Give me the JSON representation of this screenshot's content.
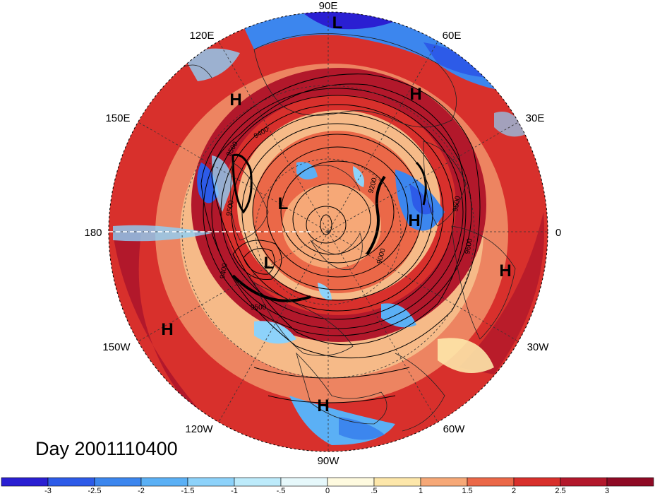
{
  "title": "Day 2001110400",
  "projection": "north polar stereographic",
  "longitude_labels": [
    {
      "text": "90E",
      "deg": 90
    },
    {
      "text": "60E",
      "deg": 60
    },
    {
      "text": "30E",
      "deg": 30
    },
    {
      "text": "0",
      "deg": 0
    },
    {
      "text": "30W",
      "deg": -30
    },
    {
      "text": "60W",
      "deg": -60
    },
    {
      "text": "90W",
      "deg": -90
    },
    {
      "text": "120W",
      "deg": -120
    },
    {
      "text": "150W",
      "deg": -150
    },
    {
      "text": "180",
      "deg": 180
    },
    {
      "text": "150E",
      "deg": 150
    },
    {
      "text": "120E",
      "deg": 120
    }
  ],
  "pressure_centers": [
    {
      "label": "L",
      "name": "low-90e"
    },
    {
      "label": "H",
      "name": "high-60e"
    },
    {
      "label": "H",
      "name": "high-130e"
    },
    {
      "label": "L",
      "name": "low-north-pacific"
    },
    {
      "label": "H",
      "name": "high-europe"
    },
    {
      "label": "H",
      "name": "high-north-africa"
    },
    {
      "label": "L",
      "name": "low-alaska"
    },
    {
      "label": "H",
      "name": "high-east-pacific"
    },
    {
      "label": "H",
      "name": "high-central-america"
    }
  ],
  "contour_labels": [
    "9400",
    "9500",
    "9500",
    "9400",
    "9500",
    "9500",
    "9600",
    "9200",
    "9000"
  ],
  "colorbar": {
    "ticks": [
      "-3",
      "-2.5",
      "-2",
      "-1.5",
      "-1",
      "-.5",
      "0",
      ".5",
      "1",
      "1.5",
      "2",
      "2.5",
      "3"
    ],
    "colors": [
      "#2a1fd2",
      "#2d5be8",
      "#3c86ee",
      "#5bb0f5",
      "#8dd2fa",
      "#bdebfb",
      "#e6f8fb",
      "#fefadf",
      "#fde7aa",
      "#f6a877",
      "#eb6848",
      "#d8302c",
      "#b2182b",
      "#8e0a25"
    ]
  },
  "map_colors": {
    "deep_red": "#b2182b",
    "red": "#d8302c",
    "orange": "#eb6848",
    "light_orange": "#f6a877",
    "cream": "#fefadf",
    "light_blue": "#8dd2fa",
    "mid_blue": "#3c86ee",
    "deep_blue": "#2a1fd2"
  }
}
